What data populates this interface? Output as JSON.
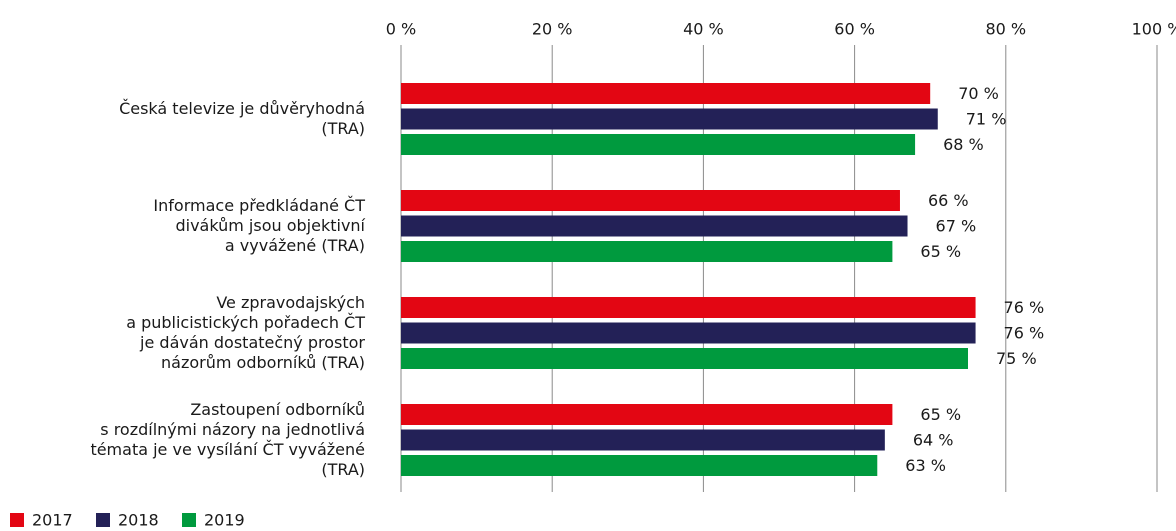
{
  "chart_data": {
    "type": "hbar",
    "categories": [
      "Česká televize je důvěryhodná\n(TRA)",
      "Informace předkládané ČT\ndivákům jsou objektivní\na vyvážené (TRA)",
      "Ve zpravodajských\na publicistických pořadech ČT\nje dáván dostatečný prostor\nnázorům odborníků (TRA)",
      "Zastoupení odborníků\ns rozdílnými názory na jednotlivá\ntémata je ve vysílání ČT vyvážené\n(TRA)"
    ],
    "series": [
      {
        "name": "2017",
        "color": "#e30613",
        "values": [
          70,
          66,
          76,
          65
        ],
        "value_labels": [
          "70 %",
          "66 %",
          "76 %",
          "65 %"
        ]
      },
      {
        "name": "2018",
        "color": "#232157",
        "values": [
          71,
          67,
          76,
          64
        ],
        "value_labels": [
          "71 %",
          "67 %",
          "76 %",
          "64 %"
        ]
      },
      {
        "name": "2019",
        "color": "#009a3e",
        "values": [
          68,
          65,
          75,
          63
        ],
        "value_labels": [
          "68 %",
          "65 %",
          "75 %",
          "63 %"
        ]
      }
    ],
    "xlim": [
      0,
      100
    ],
    "xticks": [
      {
        "value": 0,
        "label": "0 %"
      },
      {
        "value": 20,
        "label": "20 %"
      },
      {
        "value": 40,
        "label": "40 %"
      },
      {
        "value": 60,
        "label": "60 %"
      },
      {
        "value": 80,
        "label": "80 %"
      },
      {
        "value": 100,
        "label": "100 %"
      }
    ],
    "grid": true,
    "legend": "bottom-left"
  }
}
